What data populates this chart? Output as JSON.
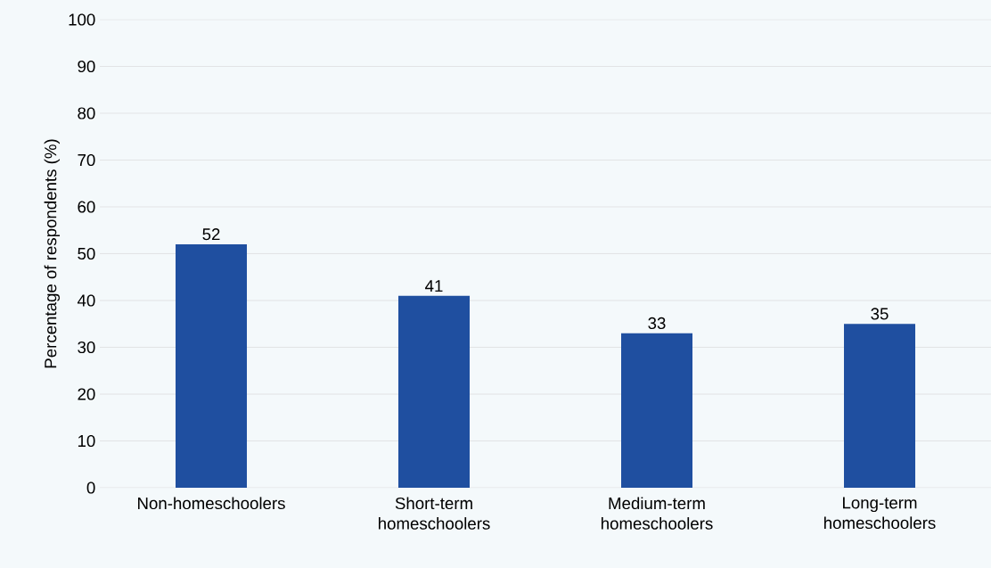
{
  "chart_data": {
    "type": "bar",
    "ylabel": "Percentage of respondents (%)",
    "categories": [
      "Non-homeschoolers",
      "Short-term homeschoolers",
      "Medium-term homeschoolers",
      "Long-term homeschoolers"
    ],
    "values": [
      52,
      41,
      33,
      35
    ],
    "color": "#1f4fa0",
    "data_labels": true,
    "ylim": [
      0,
      100
    ],
    "yticks": [
      0,
      10,
      20,
      30,
      40,
      50,
      60,
      70,
      80,
      90,
      100
    ],
    "grid": "y"
  }
}
